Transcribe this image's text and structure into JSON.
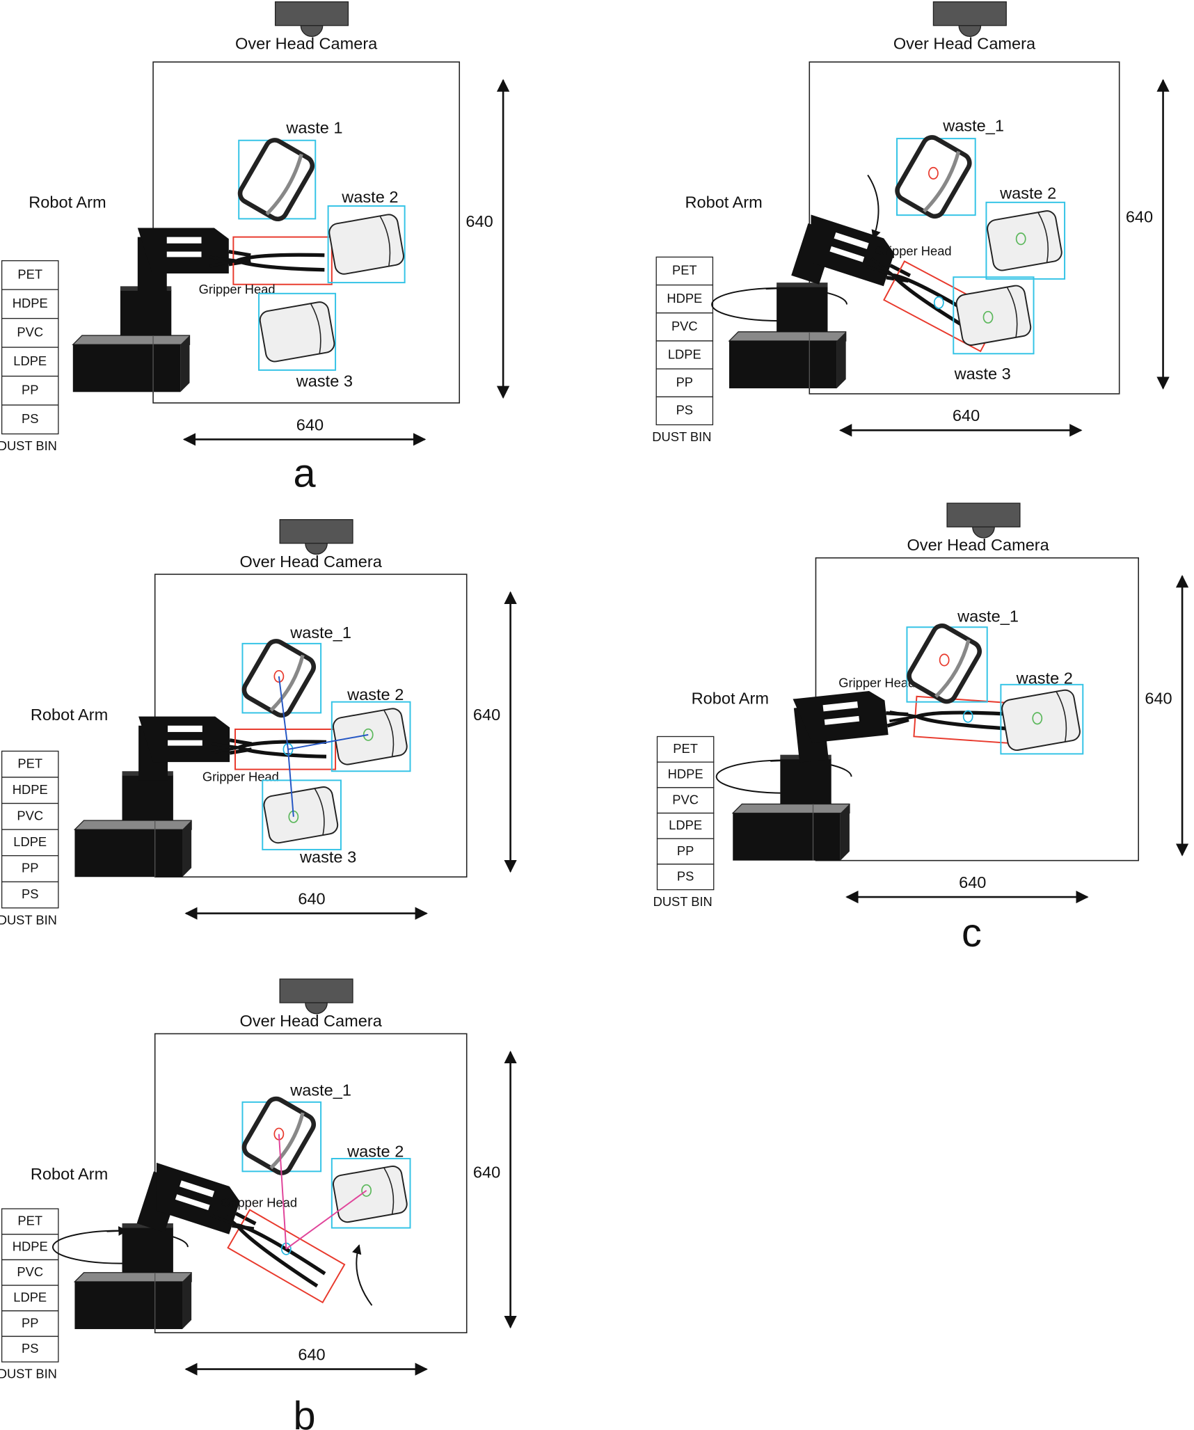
{
  "labels": {
    "camera": "Over Head Camera",
    "robot_arm": "Robot Arm",
    "gripper_head": "Gripper Head",
    "dust_bin": "DUST BIN",
    "dimension": "640"
  },
  "bins": [
    "PET",
    "HDPE",
    "PVC",
    "LDPE",
    "PP",
    "PS"
  ],
  "panels": [
    {
      "id": "a",
      "caption": "a",
      "waste_labels": [
        "waste 1",
        "waste 2",
        "waste 3"
      ]
    },
    {
      "id": "a2",
      "caption": "",
      "waste_labels": [
        "waste_1",
        "waste 2",
        "waste 3"
      ]
    },
    {
      "id": "b1",
      "caption": "",
      "waste_labels": [
        "waste_1",
        "waste 2",
        "waste 3"
      ]
    },
    {
      "id": "c",
      "caption": "c",
      "waste_labels": [
        "waste_1",
        "waste 2"
      ]
    },
    {
      "id": "b2",
      "caption": "b",
      "waste_labels": [
        "waste_1",
        "waste 2"
      ]
    }
  ],
  "colors": {
    "bbox": "#33c3e6",
    "gripper_box": "#e8392c",
    "target_marker": "#e8392c",
    "centroid_marker": "#5cb85c",
    "gripper_marker": "#1fb6e0",
    "path_blue": "#2456c4",
    "path_pink": "#e0449a",
    "arm": "#111111",
    "camera": "#555555"
  },
  "icons": [
    "camera-icon",
    "robot-arm-icon",
    "gripper-icon",
    "bottle-icon",
    "rotation-arrow-icon"
  ]
}
